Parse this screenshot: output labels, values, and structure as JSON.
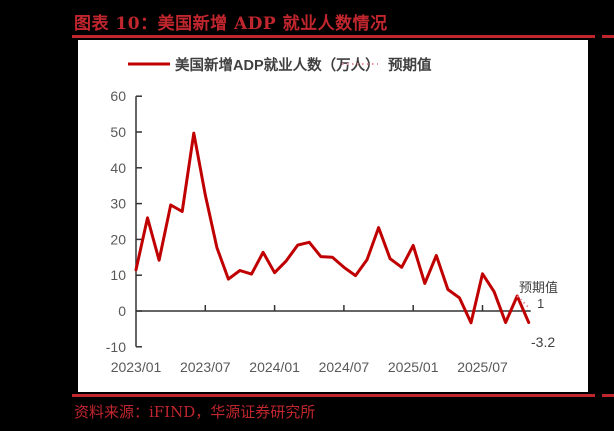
{
  "header": {
    "title": "图表 10：美国新增 ADP 就业人数情况"
  },
  "footer": {
    "source": "资料来源：iFIND，华源证券研究所"
  },
  "colors": {
    "accent": "#c0262d",
    "series": "#c00000",
    "expected": "#e8909a",
    "axis": "#333333",
    "tick_text": "#595959"
  },
  "chart_data": {
    "type": "line",
    "title": "美国新增ADP就业人数情况",
    "xlabel": "",
    "ylabel": "",
    "ylim": [
      -10,
      60
    ],
    "yticks": [
      -10,
      0,
      10,
      20,
      30,
      40,
      50,
      60
    ],
    "xtick_labels": [
      "2023/01",
      "2023/07",
      "2024/01",
      "2024/07",
      "2025/01",
      "2025/07"
    ],
    "grid": false,
    "legend_position": "top",
    "x": [
      "2023/01",
      "2023/02",
      "2023/03",
      "2023/04",
      "2023/05",
      "2023/06",
      "2023/07",
      "2023/08",
      "2023/09",
      "2023/10",
      "2023/11",
      "2023/12",
      "2024/01",
      "2024/02",
      "2024/03",
      "2024/04",
      "2024/05",
      "2024/06",
      "2024/07",
      "2024/08",
      "2024/09",
      "2024/10",
      "2024/11",
      "2024/12",
      "2025/01",
      "2025/02",
      "2025/03",
      "2025/04",
      "2025/05",
      "2025/06",
      "2025/07",
      "2025/08",
      "2025/09",
      "2025/10",
      "2025/11"
    ],
    "series": [
      {
        "name": "美国新增ADP就业人数（万人）",
        "style": "solid",
        "values": [
          11.5,
          26.0,
          14.2,
          29.6,
          27.8,
          49.7,
          32.4,
          17.7,
          8.9,
          11.3,
          10.3,
          16.4,
          10.7,
          14.0,
          18.4,
          19.2,
          15.2,
          15.0,
          12.2,
          9.9,
          14.3,
          23.3,
          14.6,
          12.2,
          18.3,
          7.7,
          15.5,
          6.0,
          3.7,
          -3.3,
          10.4,
          5.4,
          -3.2,
          4.2,
          -3.2
        ]
      },
      {
        "name": "预期值",
        "style": "dotted",
        "x": [
          "2025/10",
          "2025/11"
        ],
        "values": [
          4.2,
          1
        ]
      }
    ],
    "annotations": [
      {
        "text": "预期值",
        "x": "2025/11"
      },
      {
        "text": "1",
        "x": "2025/11",
        "y": 1
      },
      {
        "text": "-3.2",
        "x": "2025/11",
        "y": -3.2
      }
    ]
  },
  "legend": {
    "series_label": "美国新增ADP就业人数（万人）",
    "expected_label": "预期值"
  },
  "annotations": {
    "expected_title": "预期值",
    "expected_value": "1",
    "actual_value": "-3.2"
  }
}
